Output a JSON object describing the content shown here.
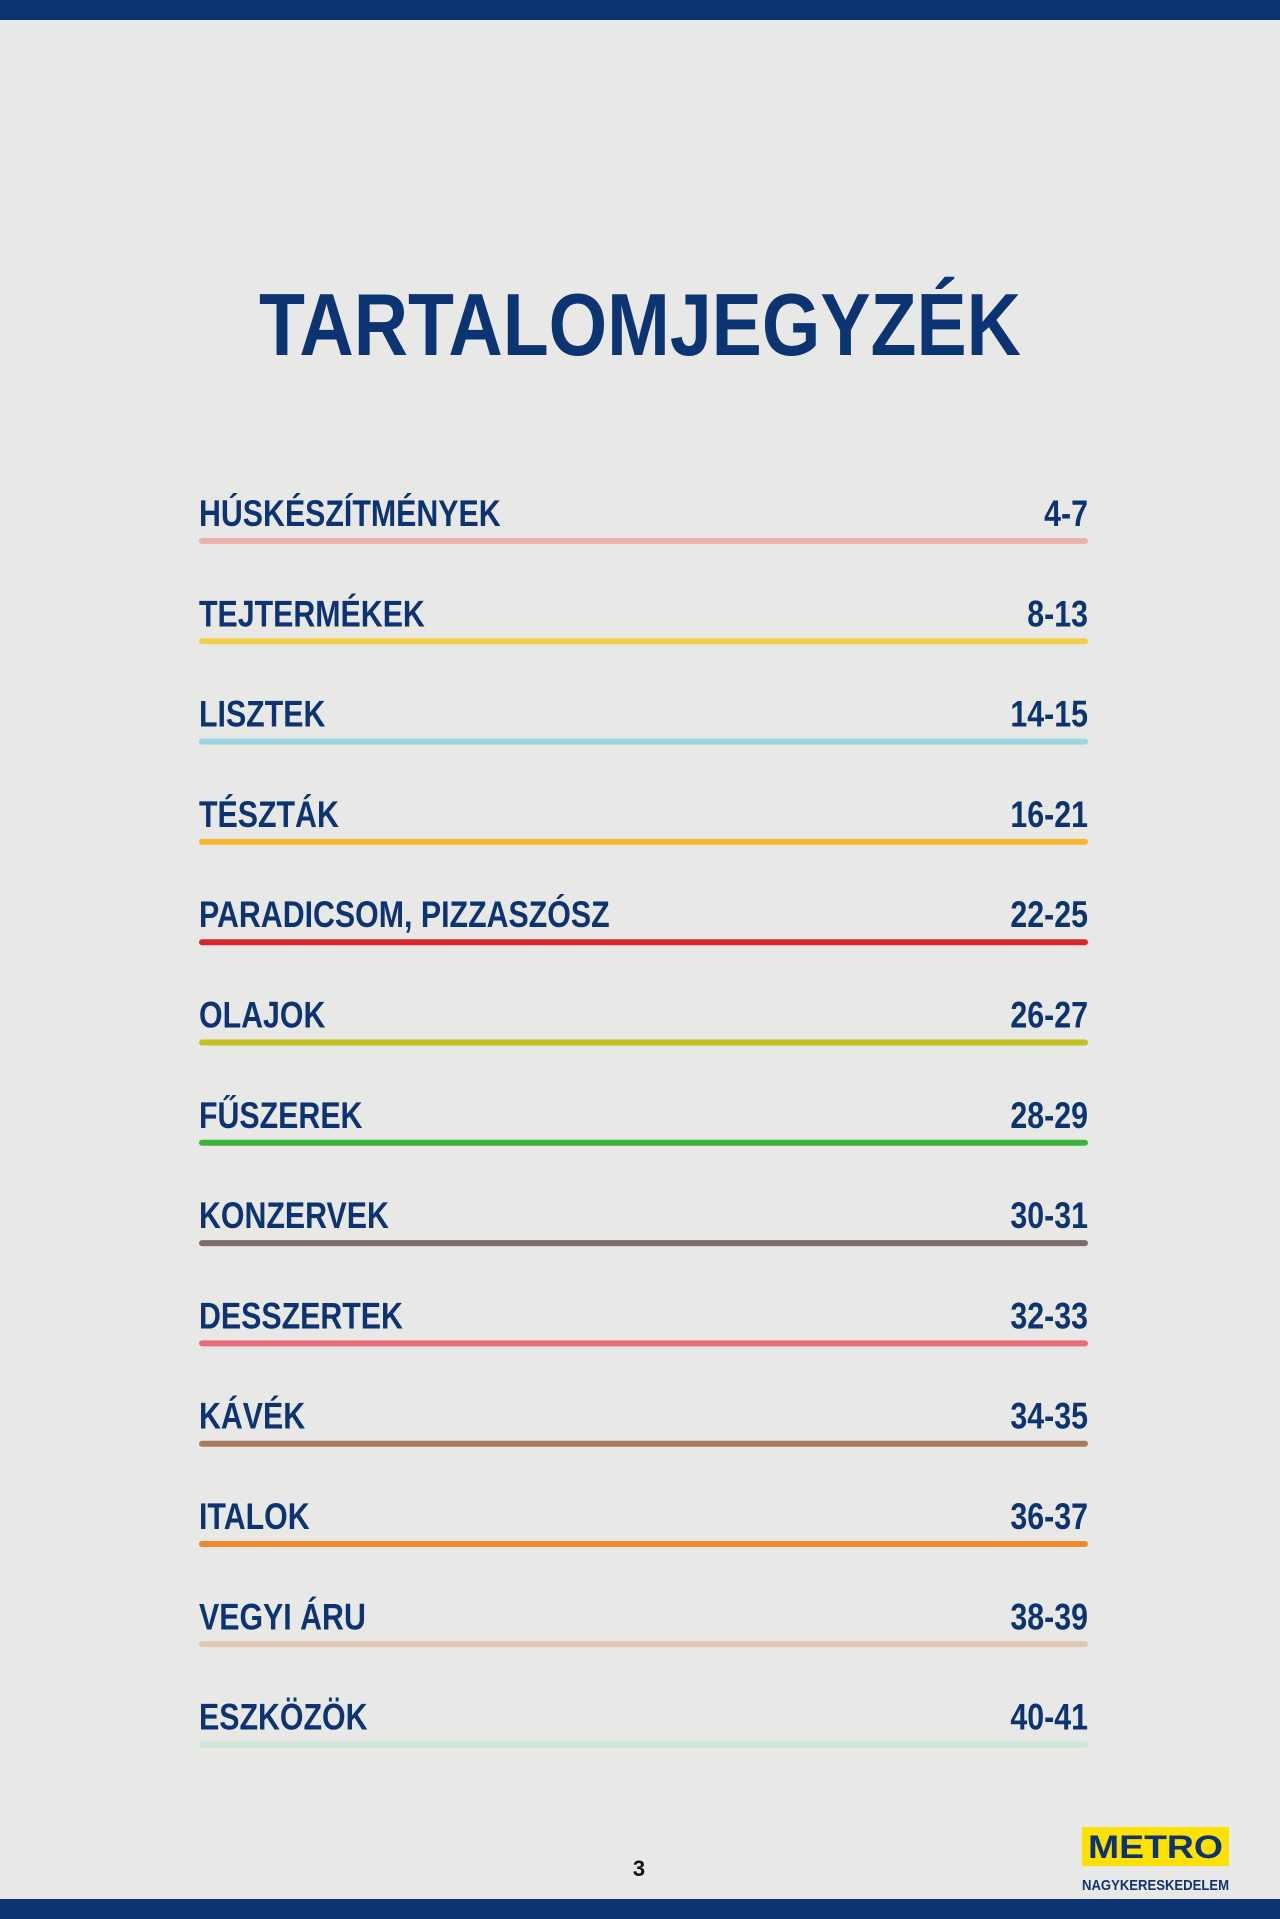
{
  "title": "TARTALOMJEGYZÉK",
  "entries": [
    {
      "label": "HÚSKÉSZÍTMÉNYEK",
      "pages": "4-7",
      "color": "#e8b4ad"
    },
    {
      "label": "TEJTERMÉKEK",
      "pages": "8-13",
      "color": "#f0cf4c"
    },
    {
      "label": "LISZTEK",
      "pages": "14-15",
      "color": "#9dd6e0"
    },
    {
      "label": "TÉSZTÁK",
      "pages": "16-21",
      "color": "#f5b731"
    },
    {
      "label": "PARADICSOM, PIZZASZÓSZ",
      "pages": "22-25",
      "color": "#d9262e"
    },
    {
      "label": "OLAJOK",
      "pages": "26-27",
      "color": "#c4c021"
    },
    {
      "label": "FŰSZEREK",
      "pages": "28-29",
      "color": "#3cb33a"
    },
    {
      "label": "KONZERVEK",
      "pages": "30-31",
      "color": "#7e6b6d"
    },
    {
      "label": "DESSZERTEK",
      "pages": "32-33",
      "color": "#ec6a7a"
    },
    {
      "label": "KÁVÉK",
      "pages": "34-35",
      "color": "#a87a5c"
    },
    {
      "label": "ITALOK",
      "pages": "36-37",
      "color": "#f08a2c"
    },
    {
      "label": "VEGYI ÁRU",
      "pages": "38-39",
      "color": "#e3c8b1"
    },
    {
      "label": "ESZKÖZÖK",
      "pages": "40-41",
      "color": "#cfe6d6"
    }
  ],
  "page_number": "3",
  "logo": {
    "brand": "METRO",
    "tagline": "NAGYKERESKEDELEM"
  }
}
